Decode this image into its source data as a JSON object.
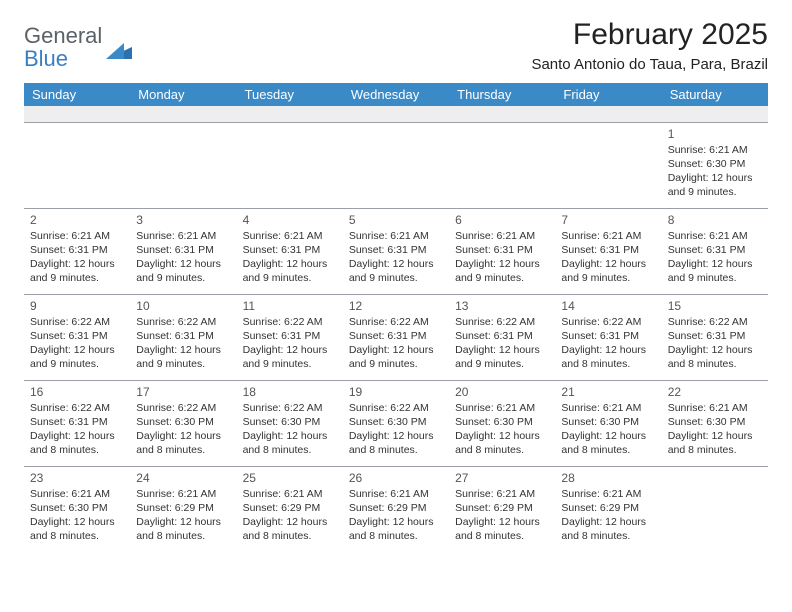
{
  "logo": {
    "line1": "General",
    "line2": "Blue"
  },
  "header": {
    "month_title": "February 2025",
    "location": "Santo Antonio do Taua, Para, Brazil"
  },
  "colors": {
    "header_bg": "#3a8ac8",
    "header_text": "#ffffff",
    "spacer_bg": "#eeeeee",
    "page_bg": "#ffffff",
    "logo_gray": "#5a6268",
    "logo_blue": "#3a7fc4"
  },
  "day_labels": [
    "Sunday",
    "Monday",
    "Tuesday",
    "Wednesday",
    "Thursday",
    "Friday",
    "Saturday"
  ],
  "weeks": [
    [
      null,
      null,
      null,
      null,
      null,
      null,
      {
        "n": "1",
        "sunrise": "Sunrise: 6:21 AM",
        "sunset": "Sunset: 6:30 PM",
        "day1": "Daylight: 12 hours",
        "day2": "and 9 minutes."
      }
    ],
    [
      {
        "n": "2",
        "sunrise": "Sunrise: 6:21 AM",
        "sunset": "Sunset: 6:31 PM",
        "day1": "Daylight: 12 hours",
        "day2": "and 9 minutes."
      },
      {
        "n": "3",
        "sunrise": "Sunrise: 6:21 AM",
        "sunset": "Sunset: 6:31 PM",
        "day1": "Daylight: 12 hours",
        "day2": "and 9 minutes."
      },
      {
        "n": "4",
        "sunrise": "Sunrise: 6:21 AM",
        "sunset": "Sunset: 6:31 PM",
        "day1": "Daylight: 12 hours",
        "day2": "and 9 minutes."
      },
      {
        "n": "5",
        "sunrise": "Sunrise: 6:21 AM",
        "sunset": "Sunset: 6:31 PM",
        "day1": "Daylight: 12 hours",
        "day2": "and 9 minutes."
      },
      {
        "n": "6",
        "sunrise": "Sunrise: 6:21 AM",
        "sunset": "Sunset: 6:31 PM",
        "day1": "Daylight: 12 hours",
        "day2": "and 9 minutes."
      },
      {
        "n": "7",
        "sunrise": "Sunrise: 6:21 AM",
        "sunset": "Sunset: 6:31 PM",
        "day1": "Daylight: 12 hours",
        "day2": "and 9 minutes."
      },
      {
        "n": "8",
        "sunrise": "Sunrise: 6:21 AM",
        "sunset": "Sunset: 6:31 PM",
        "day1": "Daylight: 12 hours",
        "day2": "and 9 minutes."
      }
    ],
    [
      {
        "n": "9",
        "sunrise": "Sunrise: 6:22 AM",
        "sunset": "Sunset: 6:31 PM",
        "day1": "Daylight: 12 hours",
        "day2": "and 9 minutes."
      },
      {
        "n": "10",
        "sunrise": "Sunrise: 6:22 AM",
        "sunset": "Sunset: 6:31 PM",
        "day1": "Daylight: 12 hours",
        "day2": "and 9 minutes."
      },
      {
        "n": "11",
        "sunrise": "Sunrise: 6:22 AM",
        "sunset": "Sunset: 6:31 PM",
        "day1": "Daylight: 12 hours",
        "day2": "and 9 minutes."
      },
      {
        "n": "12",
        "sunrise": "Sunrise: 6:22 AM",
        "sunset": "Sunset: 6:31 PM",
        "day1": "Daylight: 12 hours",
        "day2": "and 9 minutes."
      },
      {
        "n": "13",
        "sunrise": "Sunrise: 6:22 AM",
        "sunset": "Sunset: 6:31 PM",
        "day1": "Daylight: 12 hours",
        "day2": "and 9 minutes."
      },
      {
        "n": "14",
        "sunrise": "Sunrise: 6:22 AM",
        "sunset": "Sunset: 6:31 PM",
        "day1": "Daylight: 12 hours",
        "day2": "and 8 minutes."
      },
      {
        "n": "15",
        "sunrise": "Sunrise: 6:22 AM",
        "sunset": "Sunset: 6:31 PM",
        "day1": "Daylight: 12 hours",
        "day2": "and 8 minutes."
      }
    ],
    [
      {
        "n": "16",
        "sunrise": "Sunrise: 6:22 AM",
        "sunset": "Sunset: 6:31 PM",
        "day1": "Daylight: 12 hours",
        "day2": "and 8 minutes."
      },
      {
        "n": "17",
        "sunrise": "Sunrise: 6:22 AM",
        "sunset": "Sunset: 6:30 PM",
        "day1": "Daylight: 12 hours",
        "day2": "and 8 minutes."
      },
      {
        "n": "18",
        "sunrise": "Sunrise: 6:22 AM",
        "sunset": "Sunset: 6:30 PM",
        "day1": "Daylight: 12 hours",
        "day2": "and 8 minutes."
      },
      {
        "n": "19",
        "sunrise": "Sunrise: 6:22 AM",
        "sunset": "Sunset: 6:30 PM",
        "day1": "Daylight: 12 hours",
        "day2": "and 8 minutes."
      },
      {
        "n": "20",
        "sunrise": "Sunrise: 6:21 AM",
        "sunset": "Sunset: 6:30 PM",
        "day1": "Daylight: 12 hours",
        "day2": "and 8 minutes."
      },
      {
        "n": "21",
        "sunrise": "Sunrise: 6:21 AM",
        "sunset": "Sunset: 6:30 PM",
        "day1": "Daylight: 12 hours",
        "day2": "and 8 minutes."
      },
      {
        "n": "22",
        "sunrise": "Sunrise: 6:21 AM",
        "sunset": "Sunset: 6:30 PM",
        "day1": "Daylight: 12 hours",
        "day2": "and 8 minutes."
      }
    ],
    [
      {
        "n": "23",
        "sunrise": "Sunrise: 6:21 AM",
        "sunset": "Sunset: 6:30 PM",
        "day1": "Daylight: 12 hours",
        "day2": "and 8 minutes."
      },
      {
        "n": "24",
        "sunrise": "Sunrise: 6:21 AM",
        "sunset": "Sunset: 6:29 PM",
        "day1": "Daylight: 12 hours",
        "day2": "and 8 minutes."
      },
      {
        "n": "25",
        "sunrise": "Sunrise: 6:21 AM",
        "sunset": "Sunset: 6:29 PM",
        "day1": "Daylight: 12 hours",
        "day2": "and 8 minutes."
      },
      {
        "n": "26",
        "sunrise": "Sunrise: 6:21 AM",
        "sunset": "Sunset: 6:29 PM",
        "day1": "Daylight: 12 hours",
        "day2": "and 8 minutes."
      },
      {
        "n": "27",
        "sunrise": "Sunrise: 6:21 AM",
        "sunset": "Sunset: 6:29 PM",
        "day1": "Daylight: 12 hours",
        "day2": "and 8 minutes."
      },
      {
        "n": "28",
        "sunrise": "Sunrise: 6:21 AM",
        "sunset": "Sunset: 6:29 PM",
        "day1": "Daylight: 12 hours",
        "day2": "and 8 minutes."
      },
      null
    ]
  ]
}
